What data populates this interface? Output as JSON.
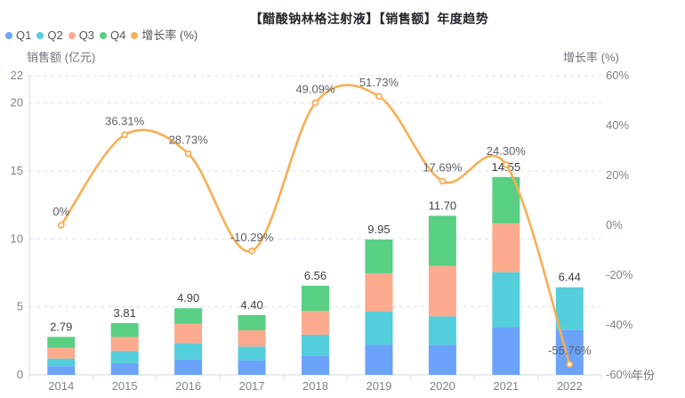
{
  "title": "【醋酸钠林格注射液】【销售额】年度趋势",
  "axis_names": {
    "left": "销售额 (亿元)",
    "right": "增长率 (%)",
    "x": "年份"
  },
  "legend": {
    "items": [
      {
        "label": "Q1",
        "color": "#6BA3FA"
      },
      {
        "label": "Q2",
        "color": "#53CEDA"
      },
      {
        "label": "Q3",
        "color": "#FCAA8D"
      },
      {
        "label": "Q4",
        "color": "#59CF83"
      },
      {
        "label": "增长率 (%)",
        "color": "#F9AE54"
      }
    ]
  },
  "chart_data": {
    "type": "combo_stacked_bar_line",
    "categories": [
      "2014",
      "2015",
      "2016",
      "2017",
      "2018",
      "2019",
      "2020",
      "2021",
      "2022"
    ],
    "series": [
      {
        "name": "Q1",
        "type": "bar",
        "stack": true,
        "color": "#6BA3FA",
        "values": [
          0.64,
          0.86,
          1.13,
          1.07,
          1.38,
          2.22,
          2.2,
          3.5,
          3.3
        ]
      },
      {
        "name": "Q2",
        "type": "bar",
        "stack": true,
        "color": "#53CEDA",
        "values": [
          0.56,
          0.9,
          1.21,
          1.01,
          1.57,
          2.45,
          2.1,
          4.05,
          3.14
        ]
      },
      {
        "name": "Q3",
        "type": "bar",
        "stack": true,
        "color": "#FCAA8D",
        "values": [
          0.79,
          1.03,
          1.41,
          1.2,
          1.75,
          2.8,
          3.7,
          3.6,
          0
        ]
      },
      {
        "name": "Q4",
        "type": "bar",
        "stack": true,
        "color": "#59CF83",
        "values": [
          0.8,
          1.02,
          1.15,
          1.12,
          1.86,
          2.48,
          3.7,
          3.4,
          0
        ]
      },
      {
        "name": "增长率 (%)",
        "type": "line",
        "axis": "right",
        "color": "#F9AE54",
        "smooth": true,
        "values": [
          0,
          36.31,
          28.73,
          -10.29,
          49.09,
          51.73,
          17.69,
          24.3,
          -55.76
        ],
        "point_labels": [
          "0%",
          "36.31%",
          "28.73%",
          "-10.29%",
          "49.09%",
          "51.73%",
          "17.69%",
          "24.30%",
          "-55.76%"
        ]
      }
    ],
    "bar_total_labels": [
      "2.79",
      "3.81",
      "4.90",
      "4.40",
      "6.56",
      "9.95",
      "11.70",
      "14.55",
      "6.44"
    ],
    "left_axis": {
      "label": "销售额 (亿元)",
      "min": 0,
      "max": 22,
      "ticks": [
        0,
        5,
        10,
        15,
        20,
        22
      ]
    },
    "right_axis": {
      "label": "增长率 (%)",
      "min": -60,
      "max": 60,
      "ticks": [
        60,
        40,
        20,
        0,
        -20,
        -40,
        -60
      ],
      "tick_labels": [
        "60%",
        "40%",
        "20%",
        "0%",
        "-20%",
        "-40%",
        "-60%"
      ]
    },
    "xlabel": "年份",
    "grid": "dashed horizontal lines at left-axis ticks 5,10,15,20,22",
    "legend_position": "top-left"
  },
  "style_colors": {
    "grid_line": "#dbe0ea",
    "axis_line": "#d4d8e1",
    "tick_label": "#7e828a",
    "bar_total_label": "#3c4046",
    "growth_point_label": "#5d6167",
    "marker_fill": "#ffffff"
  }
}
